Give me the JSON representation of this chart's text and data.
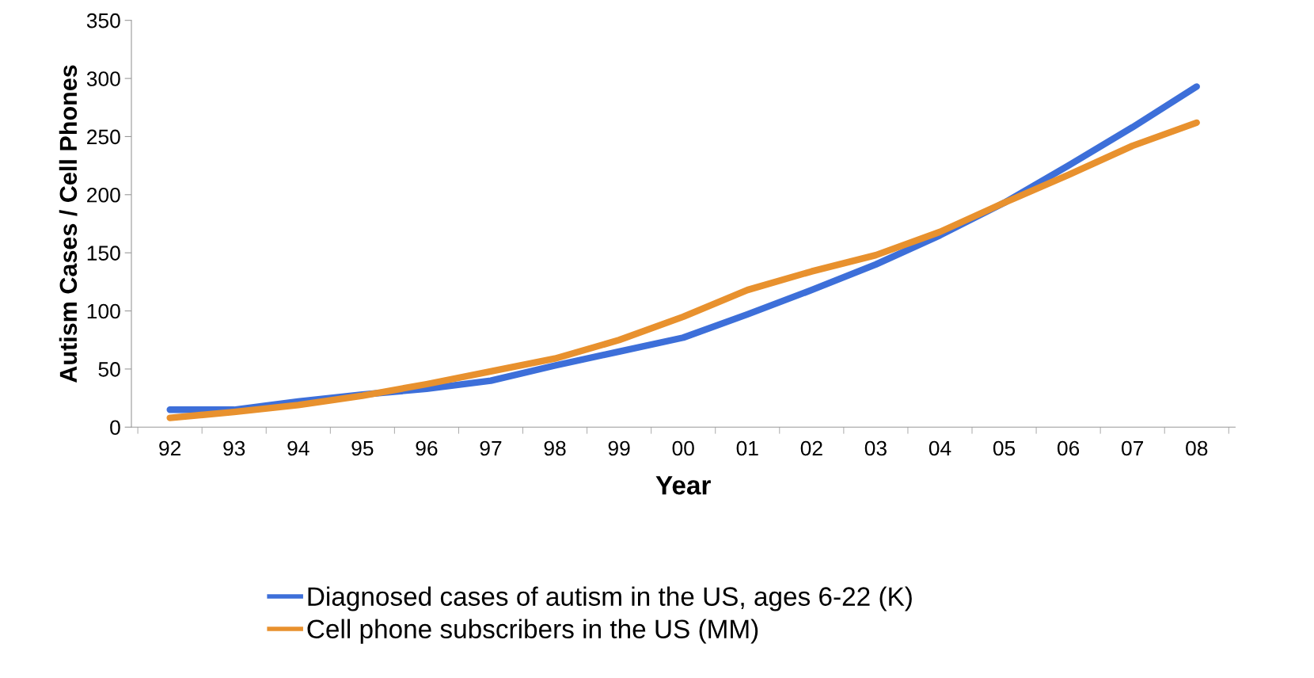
{
  "chart_data": {
    "type": "line",
    "xlabel": "Year",
    "ylabel": "Autism Cases / Cell Phones",
    "categories": [
      "92",
      "93",
      "94",
      "95",
      "96",
      "97",
      "98",
      "99",
      "00",
      "01",
      "02",
      "03",
      "04",
      "05",
      "06",
      "07",
      "08"
    ],
    "series": [
      {
        "name": "Diagnosed cases of autism in the US, ages 6-22 (K)",
        "color": "#3d6fd9",
        "values": [
          15,
          15,
          22,
          28,
          33,
          40,
          53,
          65,
          77,
          97,
          118,
          140,
          165,
          193,
          225,
          258,
          293
        ]
      },
      {
        "name": "Cell phone subscribers in the US (MM)",
        "color": "#e8912e",
        "values": [
          8,
          13,
          19,
          27,
          37,
          48,
          59,
          75,
          95,
          118,
          134,
          148,
          168,
          193,
          217,
          242,
          262
        ]
      }
    ],
    "ylim": [
      0,
      350
    ],
    "yticks": [
      0,
      50,
      100,
      150,
      200,
      250,
      300,
      350
    ],
    "grid": false,
    "legend": "bottom",
    "marker": "none",
    "line_style": "solid"
  }
}
